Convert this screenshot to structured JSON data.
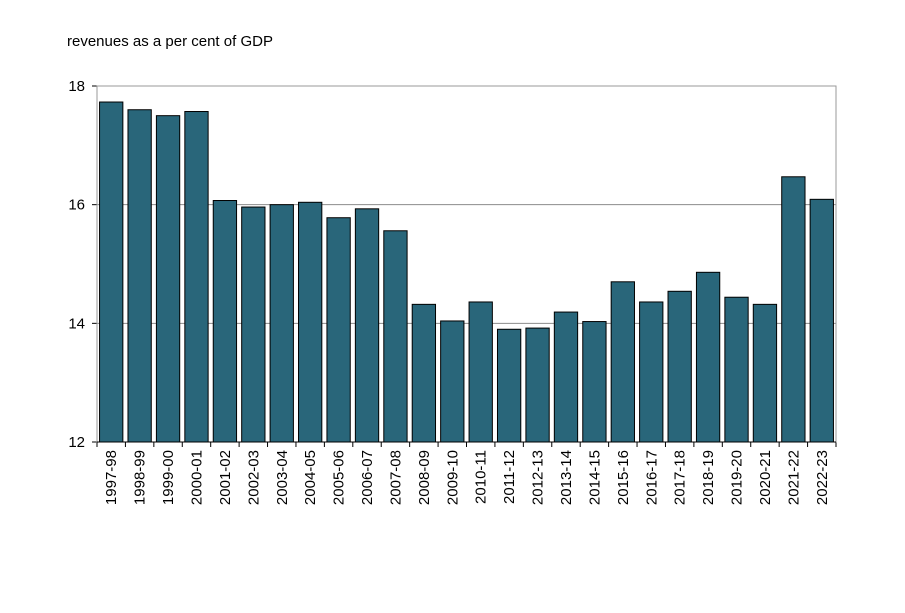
{
  "chart_data": {
    "type": "bar",
    "title": "",
    "ylabel": "revenues as a per cent of GDP",
    "xlabel": "",
    "ylim": [
      12,
      18
    ],
    "yticks": [
      12,
      14,
      16,
      18
    ],
    "grid": true,
    "bar_color": "#29667a",
    "categories": [
      "1997-98",
      "1998-99",
      "1999-00",
      "2000-01",
      "2001-02",
      "2002-03",
      "2003-04",
      "2004-05",
      "2005-06",
      "2006-07",
      "2007-08",
      "2008-09",
      "2009-10",
      "2010-11",
      "2011-12",
      "2012-13",
      "2013-14",
      "2014-15",
      "2015-16",
      "2016-17",
      "2017-18",
      "2018-19",
      "2019-20",
      "2020-21",
      "2021-22",
      "2022-23"
    ],
    "values": [
      17.73,
      17.6,
      17.5,
      17.57,
      16.07,
      15.96,
      16.0,
      16.04,
      15.78,
      15.93,
      15.56,
      14.32,
      14.04,
      14.36,
      13.9,
      13.92,
      14.19,
      14.03,
      14.7,
      14.36,
      14.54,
      14.86,
      14.44,
      14.32,
      16.47,
      16.09
    ]
  }
}
